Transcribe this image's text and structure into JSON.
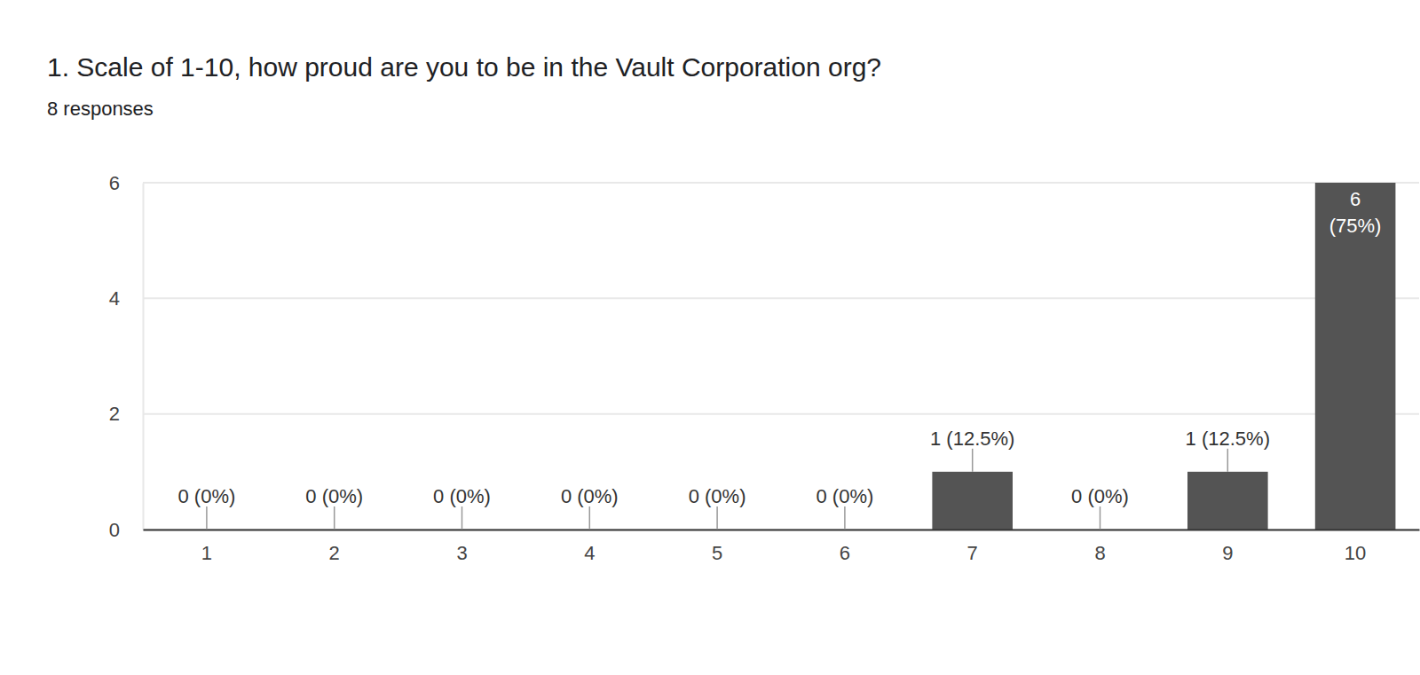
{
  "chart_data": {
    "type": "bar",
    "title": "1. Scale of 1-10, how proud are you to be in the Vault Corporation org?",
    "subtitle": "8 responses",
    "categories": [
      "1",
      "2",
      "3",
      "4",
      "5",
      "6",
      "7",
      "8",
      "9",
      "10"
    ],
    "values": [
      0,
      0,
      0,
      0,
      0,
      0,
      1,
      0,
      1,
      6
    ],
    "value_labels": [
      "0 (0%)",
      "0 (0%)",
      "0 (0%)",
      "0 (0%)",
      "0 (0%)",
      "0 (0%)",
      "1 (12.5%)",
      "0 (0%)",
      "1 (12.5%)",
      "6 (75%)"
    ],
    "color": "#545454",
    "ylim": [
      0,
      6
    ],
    "yticks": [
      0,
      2,
      4,
      6
    ],
    "grid": true,
    "data_labels": true
  }
}
